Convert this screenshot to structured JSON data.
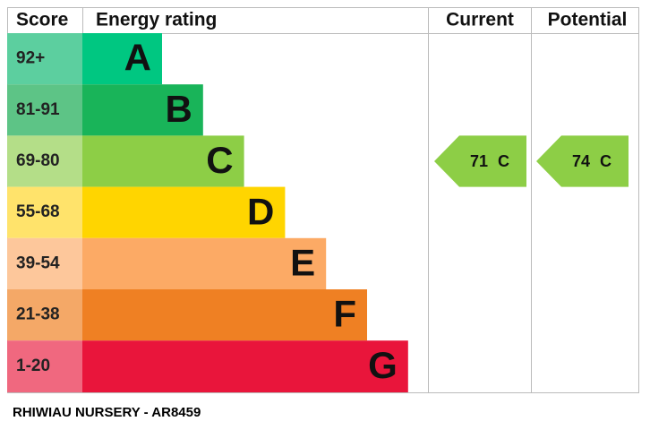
{
  "header": {
    "score": "Score",
    "rating": "Energy rating",
    "current": "Current",
    "potential": "Potential"
  },
  "bands": [
    {
      "score": "92+",
      "letter": "A",
      "color": "#00c781",
      "score_color": "#5ccf9f"
    },
    {
      "score": "81-91",
      "letter": "B",
      "color": "#19b459",
      "score_color": "#5dc486"
    },
    {
      "score": "69-80",
      "letter": "C",
      "color": "#8dce46",
      "score_color": "#b4de88"
    },
    {
      "score": "55-68",
      "letter": "D",
      "color": "#ffd500",
      "score_color": "#ffe36b"
    },
    {
      "score": "39-54",
      "letter": "E",
      "color": "#fcaa65",
      "score_color": "#fdc79b"
    },
    {
      "score": "21-38",
      "letter": "F",
      "color": "#ef8023",
      "score_color": "#f4a867"
    },
    {
      "score": "1-20",
      "letter": "G",
      "color": "#e9153b",
      "score_color": "#f0687f"
    }
  ],
  "current": {
    "value": 71,
    "letter": "C"
  },
  "potential": {
    "value": 74,
    "letter": "C"
  },
  "footer": "RHIWIAU NURSERY - AR8459"
}
